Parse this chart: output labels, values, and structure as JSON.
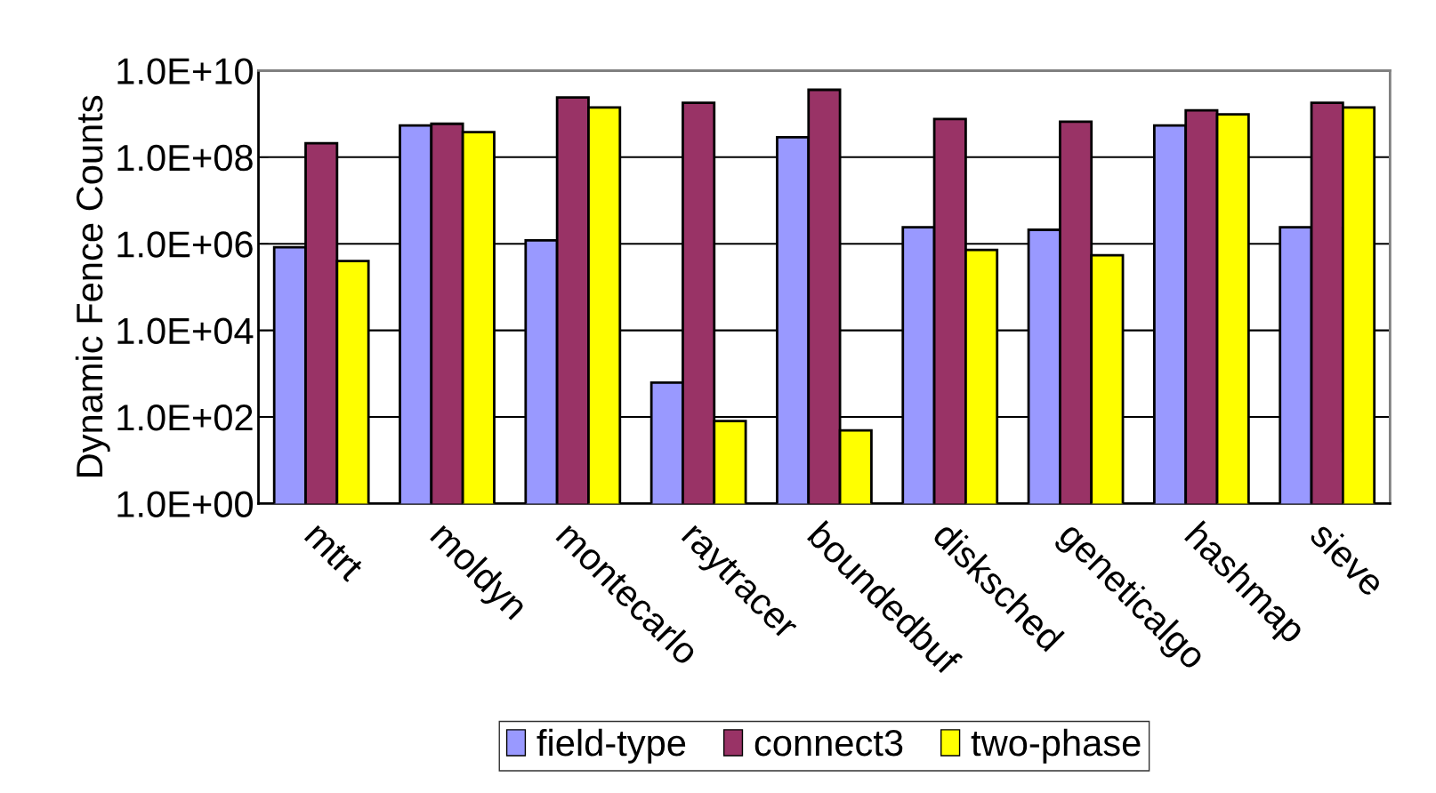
{
  "chart_data": {
    "type": "bar",
    "ylabel": "Dynamic Fence Counts",
    "log": true,
    "categories": [
      "mtrt",
      "moldyn",
      "montecarlo",
      "raytracer",
      "boundedbuf",
      "disksched",
      "geneticalgo",
      "hashmap",
      "sieve"
    ],
    "series": [
      {
        "name": "field-type",
        "color": "#9999ff",
        "values": [
          830000,
          540000000,
          1200000,
          620,
          290000000,
          2400000,
          2100000,
          540000000,
          2400000
        ]
      },
      {
        "name": "connect3",
        "color": "#993366",
        "values": [
          210000000,
          590000000,
          2400000000,
          1800000000,
          3600000000,
          760000000,
          660000000,
          1200000000,
          1800000000
        ]
      },
      {
        "name": "two-phase",
        "color": "#ffff00",
        "values": [
          400000,
          380000000,
          1400000000,
          80,
          49,
          720000,
          540000,
          980000000,
          1400000000
        ]
      }
    ],
    "ylim": [
      1,
      10000000000
    ],
    "yticks": [
      {
        "value": 1,
        "label": "1.0E+00"
      },
      {
        "value": 100,
        "label": "1.0E+02"
      },
      {
        "value": 10000,
        "label": "1.0E+04"
      },
      {
        "value": 1000000,
        "label": "1.0E+06"
      },
      {
        "value": 100000000,
        "label": "1.0E+08"
      },
      {
        "value": 10000000000,
        "label": "1.0E+10"
      }
    ],
    "grid": "y",
    "legend": "bottom"
  }
}
